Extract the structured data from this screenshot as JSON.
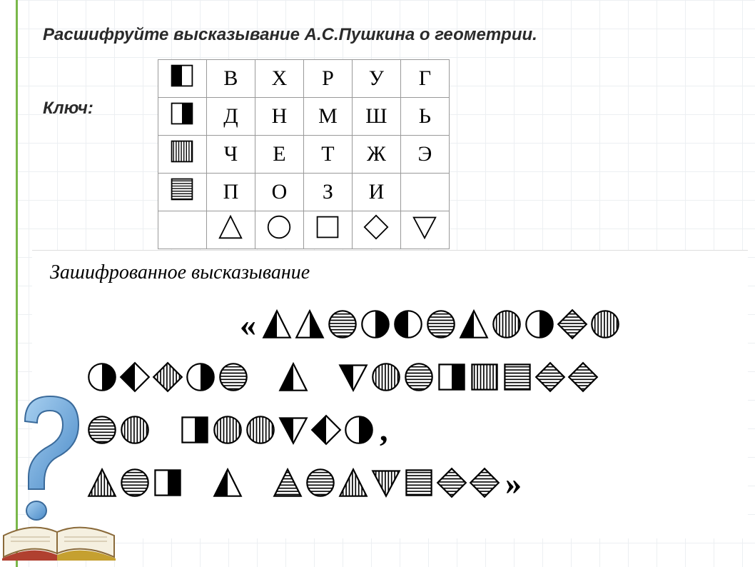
{
  "title": "Расшифруйте высказывание А.С.Пушкина о геометрии.",
  "key_label": "Ключ:",
  "cipher_title": "Зашифрованное высказывание",
  "quote_open": "«",
  "quote_close": "»",
  "comma": ",",
  "key_table": {
    "row_icons": [
      "square-left-black",
      "square-right-black",
      "square-vstripes",
      "square-hstripes"
    ],
    "col_icons": [
      "triangle-outline",
      "circle-outline",
      "square-outline",
      "diamond-outline",
      "triangle-down-outline"
    ],
    "letters": [
      [
        "В",
        "Х",
        "Р",
        "У",
        "Г"
      ],
      [
        "Д",
        "Н",
        "М",
        "Ш",
        "Ь"
      ],
      [
        "Ч",
        "Е",
        "Т",
        "Ж",
        "Э"
      ],
      [
        "П",
        "О",
        "З",
        "И",
        ""
      ]
    ]
  },
  "cipher_lines": [
    [
      "triangle-left-black",
      "triangle-right-black",
      "circle-hstripes",
      "circle-right-black",
      "circle-left-black",
      "circle-hstripes",
      "triangle-left-black",
      "circle-vstripes",
      "circle-right-black",
      "diamond-hstripes",
      "circle-vstripes"
    ],
    [
      "circle-right-black",
      "diamond-left-black",
      "diamond-vstripes",
      "circle-right-black",
      "circle-hstripes",
      "gap",
      "triangle-left-black",
      "gap",
      "triangle-down-left-black",
      "circle-vstripes",
      "circle-hstripes",
      "square-right-black",
      "square-vstripes",
      "square-hstripes",
      "diamond-hstripes",
      "diamond-hstripes"
    ],
    [
      "circle-hstripes",
      "circle-vstripes",
      "gap",
      "square-right-black",
      "circle-vstripes",
      "circle-vstripes",
      "triangle-down-left-black",
      "diamond-left-black",
      "circle-right-black"
    ],
    [
      "triangle-vstripes",
      "circle-hstripes",
      "square-right-black",
      "gap",
      "triangle-left-black",
      "gap",
      "triangle-hstripes",
      "circle-hstripes",
      "triangle-vstripes",
      "triangle-down-vstripes",
      "square-hstripes",
      "diamond-hstripes",
      "diamond-hstripes"
    ]
  ],
  "colors": {
    "grid": "#d0d8e0",
    "border_green": "#7ab84a",
    "text": "#2a2a2a",
    "table_border": "#999999",
    "qmark_body": "#6aa8d8",
    "qmark_shadow": "#3a6a9a",
    "book_page": "#f5f0e0",
    "book_spine": "#b04030",
    "book_cover": "#8a6a3a"
  }
}
